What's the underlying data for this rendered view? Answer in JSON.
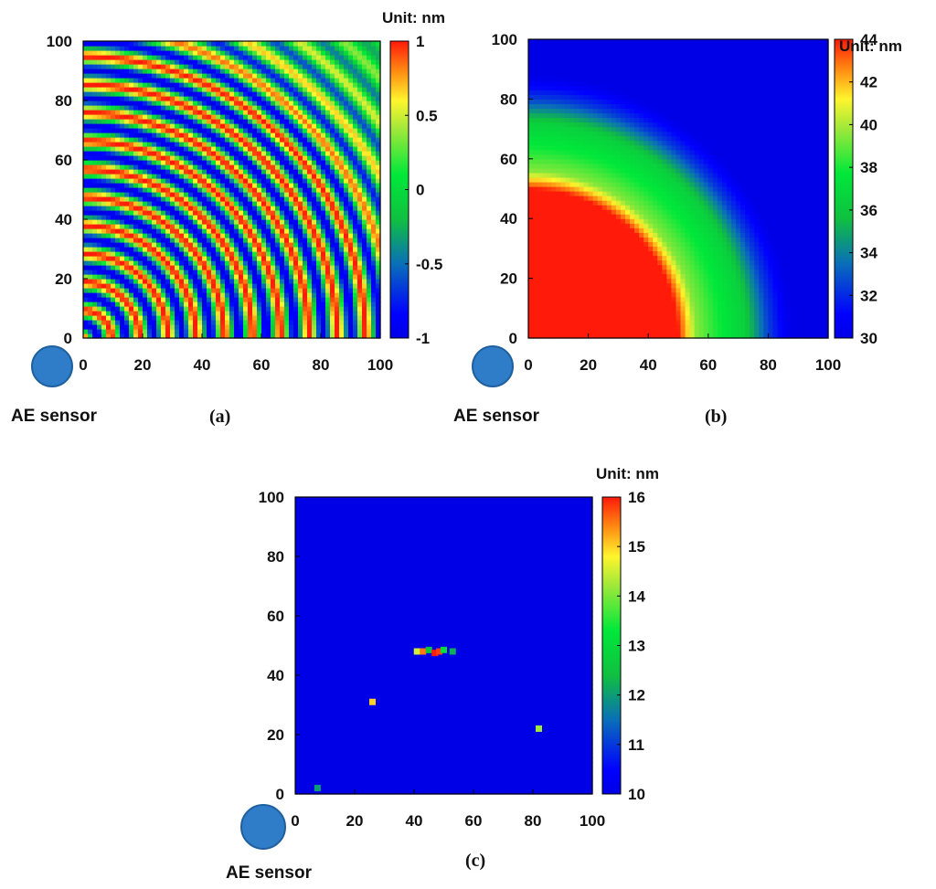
{
  "chart_data": [
    {
      "type": "heatmap",
      "panel_label": "(a)",
      "unit_label": "Unit: nm",
      "sensor_label": "AE sensor",
      "xlim": [
        0,
        100
      ],
      "ylim": [
        0,
        100
      ],
      "x_ticks": [
        "0",
        "20",
        "40",
        "60",
        "80",
        "100"
      ],
      "y_ticks": [
        "0",
        "20",
        "40",
        "60",
        "80",
        "100"
      ],
      "colorbar": {
        "min": -1,
        "max": 1,
        "ticks": [
          "-1",
          "-0.5",
          "0",
          "0.5",
          "1"
        ]
      },
      "pattern": "concentric-waves",
      "wave_period": 9.5,
      "amplitude": 1,
      "grid": false
    },
    {
      "type": "heatmap",
      "panel_label": "(b)",
      "unit_label": "Unit: nm",
      "sensor_label": "AE sensor",
      "xlim": [
        0,
        100
      ],
      "ylim": [
        0,
        100
      ],
      "x_ticks": [
        "0",
        "20",
        "40",
        "60",
        "80",
        "100"
      ],
      "y_ticks": [
        "0",
        "20",
        "40",
        "60",
        "80",
        "100"
      ],
      "colorbar": {
        "min": 30,
        "max": 44,
        "ticks": [
          "30",
          "32",
          "34",
          "36",
          "38",
          "40",
          "42",
          "44"
        ]
      },
      "pattern": "radial-envelope",
      "profile": [
        {
          "r": 0,
          "value": 44
        },
        {
          "r": 50,
          "value": 44
        },
        {
          "r": 56,
          "value": 39.5
        },
        {
          "r": 63,
          "value": 38
        },
        {
          "r": 72,
          "value": 36.5
        },
        {
          "r": 80,
          "value": 32.5
        },
        {
          "r": 88,
          "value": 30
        },
        {
          "r": 150,
          "value": 30
        }
      ],
      "grid": false
    },
    {
      "type": "heatmap",
      "panel_label": "(c)",
      "unit_label": "Unit: nm",
      "sensor_label": "AE sensor",
      "xlim": [
        0,
        100
      ],
      "ylim": [
        0,
        100
      ],
      "x_ticks": [
        "0",
        "20",
        "40",
        "60",
        "80",
        "100"
      ],
      "y_ticks": [
        "0",
        "20",
        "40",
        "60",
        "80",
        "100"
      ],
      "colorbar": {
        "min": 10,
        "max": 16,
        "ticks": [
          "10",
          "11",
          "12",
          "13",
          "14",
          "15",
          "16"
        ]
      },
      "pattern": "background-with-spots",
      "background_value": 10,
      "spots": [
        {
          "x": 41,
          "y": 48,
          "value": 14.5
        },
        {
          "x": 43,
          "y": 48,
          "value": 15.5
        },
        {
          "x": 45,
          "y": 48.5,
          "value": 12.5
        },
        {
          "x": 47,
          "y": 47.5,
          "value": 16
        },
        {
          "x": 48.5,
          "y": 48,
          "value": 15.8
        },
        {
          "x": 50,
          "y": 48.5,
          "value": 13
        },
        {
          "x": 53,
          "y": 48,
          "value": 12.2
        },
        {
          "x": 26,
          "y": 31,
          "value": 15
        },
        {
          "x": 82,
          "y": 22,
          "value": 14.2
        },
        {
          "x": 7.5,
          "y": 2,
          "value": 12
        }
      ],
      "grid": false
    }
  ]
}
